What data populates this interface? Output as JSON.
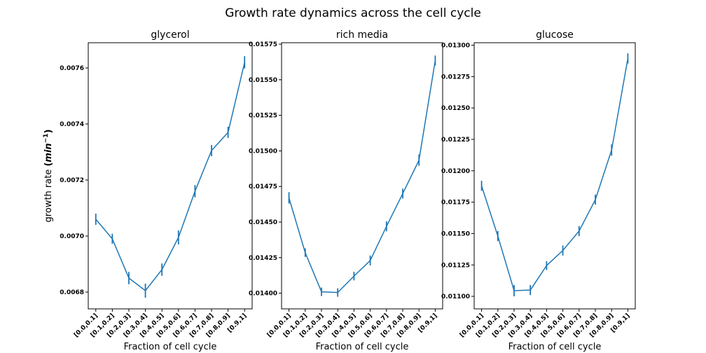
{
  "figure": {
    "title": "Growth rate dynamics across the cell cycle"
  },
  "chart_data": [
    {
      "type": "line",
      "title": "glycerol",
      "xlabel": "Fraction of cell cycle",
      "ylabel_text": "growth rate",
      "ylabel_unit_base": "min",
      "ylabel_unit_exp": "−1",
      "categories": [
        "[0.0,0.1]",
        "[0.1,0.2]",
        "[0.2,0.3]",
        "[0.3,0.4]",
        "[0.4,0.5]",
        "[0.5,0.6]",
        "[0.6,0.7]",
        "[0.7,0.8]",
        "[0.8,0.9]",
        "[0.9,1]"
      ],
      "values": [
        0.00706,
        0.00699,
        0.00685,
        0.006805,
        0.00688,
        0.006995,
        0.00716,
        0.007305,
        0.00737,
        0.00762
      ],
      "errors": [
        2e-05,
        1.8e-05,
        2.2e-05,
        2.5e-05,
        2.2e-05,
        2.5e-05,
        2.2e-05,
        2e-05,
        2e-05,
        2.2e-05
      ],
      "ylim": [
        0.00674,
        0.00769
      ],
      "yticks": [
        0.0068,
        0.007,
        0.0072,
        0.0074,
        0.0076
      ],
      "ytick_labels": [
        "0.0068",
        "0.0070",
        "0.0072",
        "0.0074",
        "0.0076"
      ],
      "color": "#1f77b4",
      "grid": false
    },
    {
      "type": "line",
      "title": "rich media",
      "xlabel": "Fraction of cell cycle",
      "categories": [
        "[0.0,0.1]",
        "[0.1,0.2]",
        "[0.2,0.3]",
        "[0.3,0.4]",
        "[0.4,0.5]",
        "[0.5,0.6]",
        "[0.6,0.7]",
        "[0.7,0.8]",
        "[0.8,0.9]",
        "[0.9,1]"
      ],
      "values": [
        0.01467,
        0.014285,
        0.01401,
        0.014005,
        0.01412,
        0.01423,
        0.01447,
        0.0147,
        0.014935,
        0.015635
      ],
      "errors": [
        4e-05,
        3e-05,
        3e-05,
        3e-05,
        3e-05,
        3.5e-05,
        3.5e-05,
        3.5e-05,
        4e-05,
        3.5e-05
      ],
      "ylim": [
        0.01389,
        0.01576
      ],
      "yticks": [
        0.014,
        0.01425,
        0.0145,
        0.01475,
        0.015,
        0.01525,
        0.0155,
        0.01575
      ],
      "ytick_labels": [
        "0.01400",
        "0.01425",
        "0.01450",
        "0.01475",
        "0.01500",
        "0.01525",
        "0.01550",
        "0.01575"
      ],
      "color": "#1f77b4",
      "grid": false
    },
    {
      "type": "line",
      "title": "glucose",
      "xlabel": "Fraction of cell cycle",
      "categories": [
        "[0.0,0.1]",
        "[0.1,0.2]",
        "[0.2,0.3]",
        "[0.3,0.4]",
        "[0.4,0.5]",
        "[0.5,0.6]",
        "[0.6,0.7]",
        "[0.7,0.8]",
        "[0.8,0.9]",
        "[0.9,1]"
      ],
      "values": [
        0.01188,
        0.01148,
        0.011045,
        0.01105,
        0.011245,
        0.011365,
        0.01152,
        0.01177,
        0.012165,
        0.012895
      ],
      "errors": [
        4e-05,
        4e-05,
        4.5e-05,
        4e-05,
        3.5e-05,
        4e-05,
        4e-05,
        4e-05,
        4.5e-05,
        4e-05
      ],
      "ylim": [
        0.0109,
        0.01302
      ],
      "yticks": [
        0.011,
        0.01125,
        0.0115,
        0.01175,
        0.012,
        0.01225,
        0.0125,
        0.01275,
        0.013
      ],
      "ytick_labels": [
        "0.01100",
        "0.01125",
        "0.01150",
        "0.01175",
        "0.01200",
        "0.01225",
        "0.01250",
        "0.01275",
        "0.01300"
      ],
      "color": "#1f77b4",
      "grid": false
    }
  ]
}
